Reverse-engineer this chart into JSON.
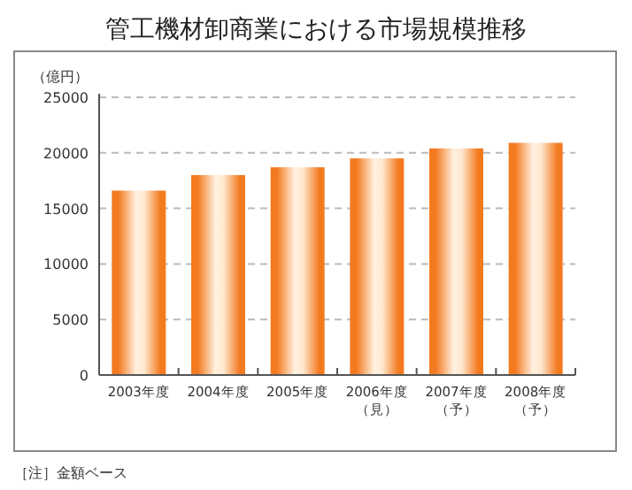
{
  "chart_data": {
    "type": "bar",
    "title": "管工機材卸商業における市場規模推移",
    "ylabel": "（億円）",
    "categories": [
      "2003年度",
      "2004年度",
      "2005年度",
      "2006年度（見）",
      "2007年度（予）",
      "2008年度（予）"
    ],
    "values": [
      16600,
      18000,
      18700,
      19500,
      20400,
      20900
    ],
    "color": "#f47a20",
    "ylim": [
      0,
      25000
    ],
    "yticks": [
      0,
      5000,
      10000,
      15000,
      20000,
      25000
    ],
    "grid": "y",
    "annotations": [
      "［注］金額ベース"
    ]
  }
}
